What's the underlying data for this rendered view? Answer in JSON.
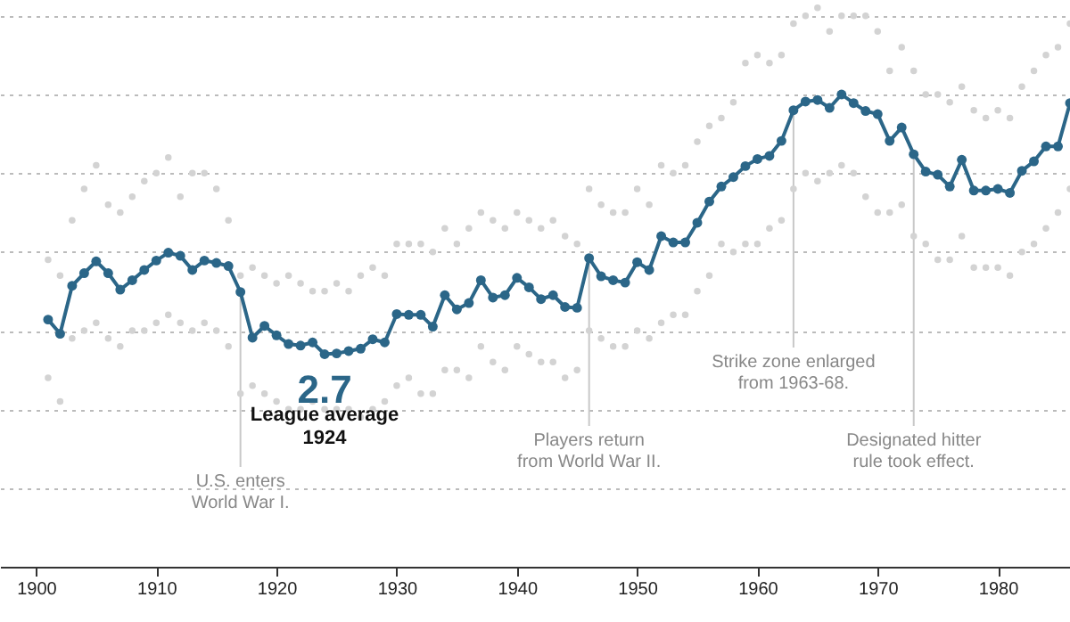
{
  "chart_data": {
    "type": "line",
    "marker": "circle",
    "line_style": "solid",
    "grid": "y",
    "tick_labels": "x",
    "xlim": [
      1897,
      1986
    ],
    "xticks": [
      1900,
      1910,
      1920,
      1930,
      1940,
      1950,
      1960,
      1970,
      1980
    ],
    "ylim": [
      0,
      7.2
    ],
    "yticks": [
      {
        "value": 1,
        "label": null
      },
      {
        "value": 2,
        "label": null
      },
      {
        "value": 3,
        "label": null
      },
      {
        "value": 4,
        "label": null
      },
      {
        "value": 5,
        "label": null
      },
      {
        "value": 6,
        "label": null
      },
      {
        "value": 7,
        "label": null
      }
    ],
    "series": [
      {
        "type": "scatter",
        "color": "#d3d3d3",
        "x": [
          1901,
          1901,
          1902,
          1902,
          1903,
          1903,
          1904,
          1904,
          1905,
          1905,
          1906,
          1906,
          1907,
          1907,
          1908,
          1908,
          1909,
          1909,
          1910,
          1910,
          1911,
          1911,
          1912,
          1912,
          1913,
          1913,
          1914,
          1914,
          1915,
          1915,
          1916,
          1916,
          1917,
          1917,
          1918,
          1918,
          1919,
          1919,
          1920,
          1920,
          1921,
          1921,
          1922,
          1922,
          1923,
          1923,
          1924,
          1924,
          1925,
          1925,
          1926,
          1926,
          1927,
          1927,
          1928,
          1928,
          1929,
          1929,
          1930,
          1930,
          1931,
          1931,
          1932,
          1932,
          1933,
          1933,
          1934,
          1934,
          1935,
          1935,
          1936,
          1936,
          1937,
          1937,
          1938,
          1938,
          1939,
          1939,
          1940,
          1940,
          1941,
          1941,
          1942,
          1942,
          1943,
          1943,
          1944,
          1944,
          1945,
          1945,
          1946,
          1946,
          1947,
          1947,
          1948,
          1948,
          1949,
          1949,
          1950,
          1950,
          1951,
          1951,
          1952,
          1952,
          1953,
          1953,
          1954,
          1954,
          1955,
          1955,
          1956,
          1956,
          1957,
          1957,
          1958,
          1958,
          1959,
          1959,
          1960,
          1960,
          1961,
          1961,
          1962,
          1962,
          1963,
          1963,
          1964,
          1964,
          1965,
          1965,
          1966,
          1966,
          1967,
          1967,
          1968,
          1968,
          1969,
          1969,
          1970,
          1970,
          1971,
          1971,
          1972,
          1972,
          1973,
          1973,
          1974,
          1974,
          1975,
          1975,
          1976,
          1976,
          1977,
          1977,
          1978,
          1978,
          1979,
          1979,
          1980,
          1980,
          1981,
          1981,
          1982,
          1982,
          1983,
          1983,
          1984,
          1984,
          1985,
          1985,
          1986,
          1986
        ],
        "values": [
          2.4,
          3.9,
          2.1,
          3.7,
          2.9,
          4.4,
          3.0,
          4.8,
          3.1,
          5.1,
          2.9,
          4.6,
          2.8,
          4.5,
          3.0,
          4.7,
          3.0,
          4.9,
          3.1,
          5.0,
          3.2,
          5.2,
          3.1,
          4.7,
          3.0,
          5.0,
          3.1,
          5.0,
          3.0,
          4.8,
          2.8,
          4.4,
          2.2,
          3.7,
          2.3,
          3.8,
          2.2,
          3.7,
          2.1,
          3.6,
          2.0,
          3.7,
          2.0,
          3.6,
          2.1,
          3.5,
          2.0,
          3.5,
          2.0,
          3.6,
          2.0,
          3.5,
          1.9,
          3.7,
          2.0,
          3.8,
          2.1,
          3.7,
          2.3,
          4.1,
          2.4,
          4.1,
          2.2,
          4.1,
          2.2,
          4.0,
          2.5,
          4.3,
          2.5,
          4.1,
          2.4,
          4.3,
          2.8,
          4.5,
          2.6,
          4.4,
          2.5,
          4.3,
          2.8,
          4.5,
          2.7,
          4.4,
          2.6,
          4.3,
          2.6,
          4.4,
          2.4,
          4.2,
          2.5,
          4.1,
          3.0,
          4.8,
          2.9,
          4.6,
          2.8,
          4.5,
          2.8,
          4.5,
          3.0,
          4.8,
          2.9,
          4.6,
          3.1,
          5.1,
          3.2,
          5.0,
          3.2,
          5.1,
          3.5,
          5.4,
          3.7,
          5.6,
          4.1,
          5.7,
          4.0,
          5.9,
          4.1,
          6.4,
          4.1,
          6.5,
          4.3,
          6.4,
          4.4,
          6.5,
          4.8,
          6.9,
          5.0,
          7.0,
          4.9,
          7.1,
          5.0,
          6.8,
          5.1,
          7.0,
          5.0,
          7.0,
          4.7,
          7.0,
          4.5,
          6.8,
          4.5,
          6.3,
          4.6,
          6.6,
          4.2,
          6.3,
          4.1,
          6.0,
          3.9,
          6.0,
          3.9,
          5.9,
          4.2,
          6.1,
          3.8,
          5.8,
          3.8,
          5.7,
          3.8,
          5.8,
          3.7,
          5.7,
          4.0,
          6.1,
          4.1,
          6.3,
          4.3,
          6.5,
          4.5,
          6.6,
          4.8,
          6.9
        ]
      },
      {
        "color": "#2b6688",
        "x": [
          1901,
          1902,
          1903,
          1904,
          1905,
          1906,
          1907,
          1908,
          1909,
          1910,
          1911,
          1912,
          1913,
          1914,
          1915,
          1916,
          1917,
          1918,
          1919,
          1920,
          1921,
          1922,
          1923,
          1924,
          1925,
          1926,
          1927,
          1928,
          1929,
          1930,
          1931,
          1932,
          1933,
          1934,
          1935,
          1936,
          1937,
          1938,
          1939,
          1940,
          1941,
          1942,
          1943,
          1944,
          1945,
          1946,
          1947,
          1948,
          1949,
          1950,
          1951,
          1952,
          1953,
          1954,
          1955,
          1956,
          1957,
          1958,
          1959,
          1960,
          1961,
          1962,
          1963,
          1964,
          1965,
          1966,
          1967,
          1968,
          1969,
          1970,
          1971,
          1972,
          1973,
          1974,
          1975,
          1976,
          1977,
          1978,
          1979,
          1980,
          1981,
          1982,
          1983,
          1984,
          1985,
          1986
        ],
        "values": [
          3.14,
          2.96,
          3.57,
          3.73,
          3.88,
          3.73,
          3.52,
          3.64,
          3.77,
          3.89,
          3.99,
          3.95,
          3.77,
          3.89,
          3.86,
          3.82,
          3.49,
          2.91,
          3.06,
          2.94,
          2.83,
          2.81,
          2.85,
          2.7,
          2.71,
          2.74,
          2.77,
          2.89,
          2.85,
          3.21,
          3.2,
          3.2,
          3.05,
          3.45,
          3.27,
          3.35,
          3.64,
          3.42,
          3.45,
          3.67,
          3.55,
          3.4,
          3.45,
          3.3,
          3.29,
          3.92,
          3.69,
          3.64,
          3.61,
          3.87,
          3.77,
          4.2,
          4.12,
          4.12,
          4.37,
          4.64,
          4.83,
          4.95,
          5.09,
          5.18,
          5.22,
          5.41,
          5.8,
          5.91,
          5.93,
          5.83,
          6.0,
          5.89,
          5.79,
          5.75,
          5.41,
          5.58,
          5.24,
          5.02,
          4.98,
          4.83,
          5.17,
          4.78,
          4.78,
          4.8,
          4.75,
          5.03,
          5.15,
          5.34,
          5.34,
          5.89
        ],
        "value_labels": [
          null,
          null,
          null,
          null,
          null,
          null,
          null,
          null,
          null,
          null,
          null,
          null,
          null,
          null,
          null,
          null,
          null,
          null,
          null,
          null,
          null,
          null,
          null,
          "2.7",
          null,
          null,
          null,
          null,
          null,
          null,
          null,
          null,
          null,
          null,
          null,
          null,
          null,
          null,
          null,
          null,
          null,
          null,
          null,
          null,
          null,
          null,
          null,
          null,
          null,
          null,
          null,
          null,
          null,
          null,
          null,
          null,
          null,
          null,
          null,
          null,
          null,
          null,
          null,
          null,
          null,
          null,
          null,
          null,
          null,
          null,
          null,
          null,
          null,
          null,
          null,
          null,
          null,
          null,
          null,
          null,
          null,
          null,
          null,
          null,
          null,
          null
        ]
      }
    ],
    "annotations": [
      "League average\n1924"
    ],
    "ref_lines": [
      {
        "axis": "x",
        "value": 1917,
        "label": "U.S. enters\nWorld War I."
      },
      {
        "axis": "x",
        "value": 1946,
        "label": "Players return\nfrom World War II."
      },
      {
        "axis": "x",
        "value": 1963,
        "label": "Strike zone enlarged\nfrom 1963-68."
      },
      {
        "axis": "x",
        "value": 1973,
        "label": "Designated hitter\nrule took effect."
      }
    ]
  }
}
